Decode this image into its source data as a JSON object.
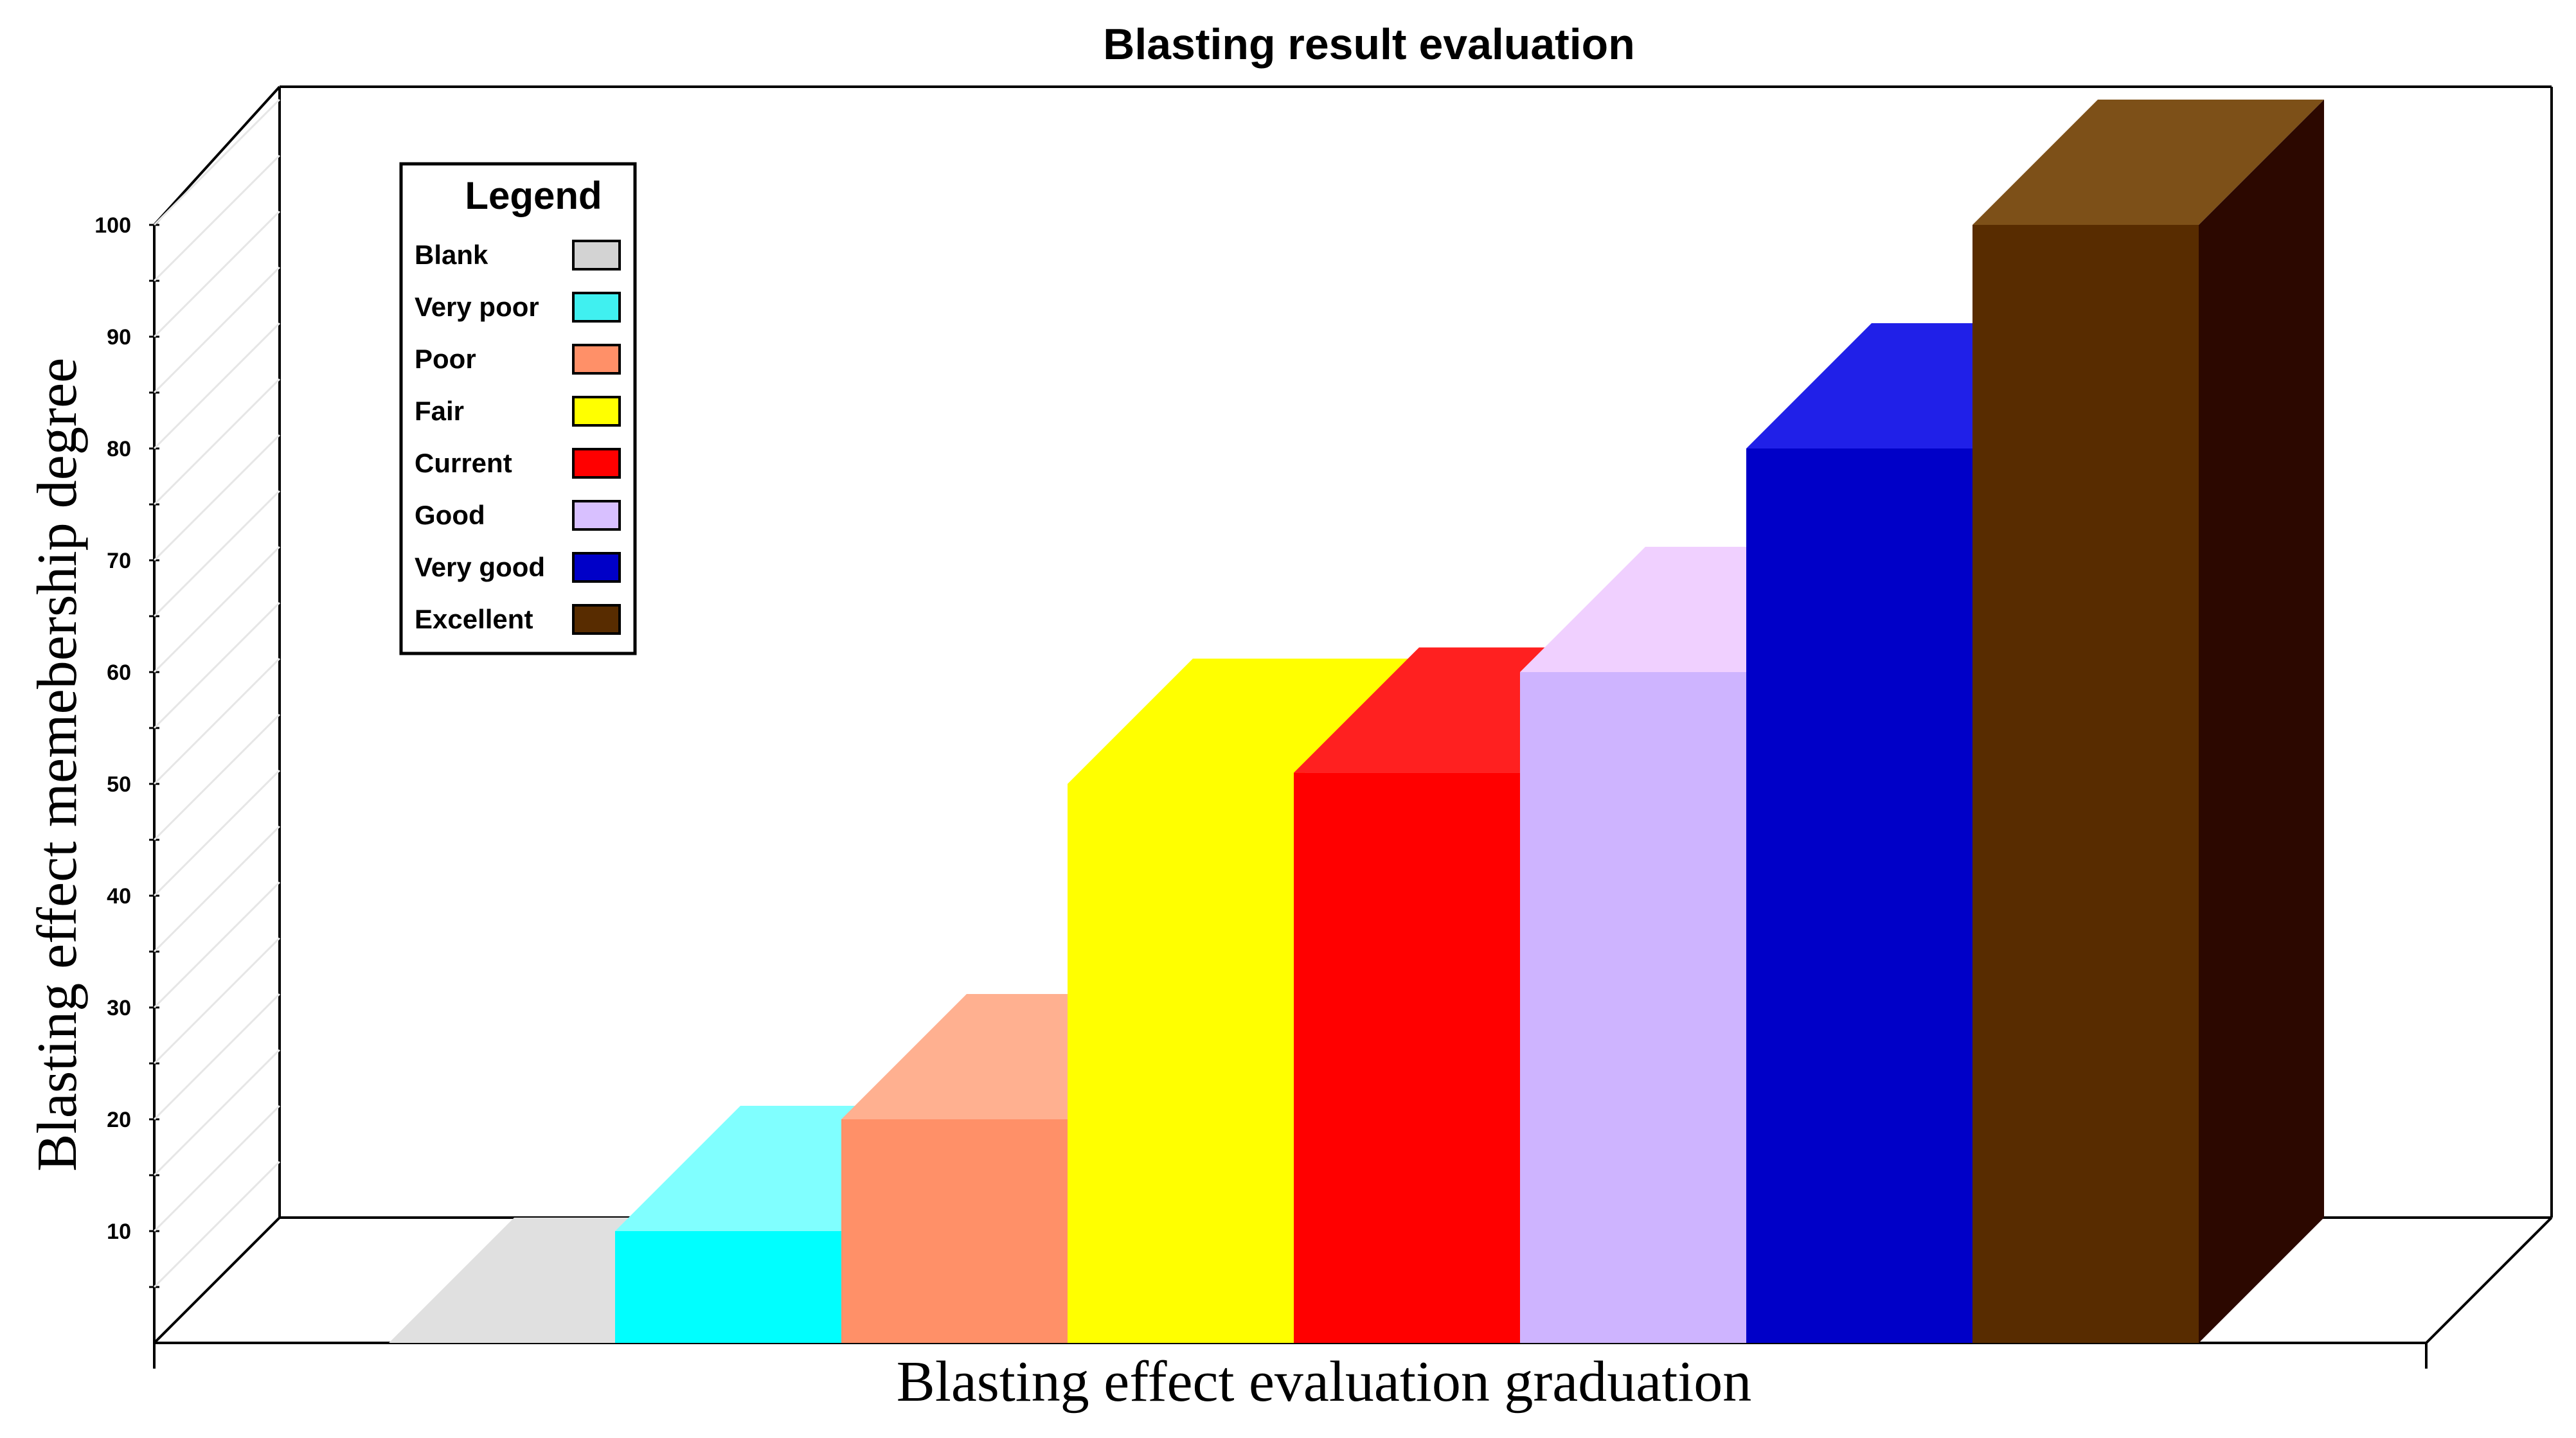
{
  "chart_data": {
    "type": "bar",
    "style": "3d",
    "title": "Blasting result evaluation",
    "xlabel": "Blasting effect evaluation graduation",
    "ylabel": "Blasting effect memebership degree",
    "ylim": [
      0,
      100
    ],
    "yticks": [
      10,
      20,
      30,
      40,
      50,
      60,
      70,
      80,
      90,
      100
    ],
    "grid": false,
    "legend": {
      "title": "Legend",
      "placement": "top-left"
    },
    "categories": [
      "Blank",
      "Very poor",
      "Poor",
      "Fair",
      "Current",
      "Good",
      "Very good",
      "Excellent"
    ],
    "values": [
      0,
      10,
      20,
      50,
      51,
      60,
      80,
      100
    ],
    "colors": {
      "front": [
        "#d3d3d3",
        "#00ffff",
        "#ff9068",
        "#ffff00",
        "#ff0000",
        "#ceb4ff",
        "#0000c8",
        "#582c00"
      ],
      "top": [
        "#e0e0e0",
        "#80ffff",
        "#ffb090",
        "#ffff00",
        "#ff2020",
        "#f0d0ff",
        "#2020e8",
        "#7d5018"
      ],
      "side": [
        null,
        null,
        null,
        null,
        null,
        null,
        null,
        "#2c0800"
      ],
      "legend_swatch": [
        "#d3d3d3",
        "#40f0f0",
        "#ff9068",
        "#ffff00",
        "#ff0000",
        "#d8c0ff",
        "#0000c8",
        "#582c00"
      ]
    }
  }
}
